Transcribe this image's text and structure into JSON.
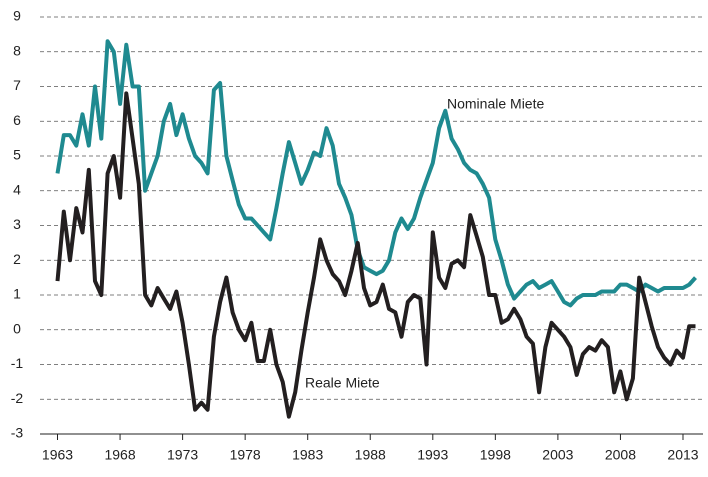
{
  "chart_data": {
    "type": "line",
    "x": [
      1963,
      1963.5,
      1964,
      1964.5,
      1965,
      1965.5,
      1966,
      1966.5,
      1967,
      1967.5,
      1968,
      1968.5,
      1969,
      1969.5,
      1970,
      1970.5,
      1971,
      1971.5,
      1972,
      1972.5,
      1973,
      1973.5,
      1974,
      1974.5,
      1975,
      1975.5,
      1976,
      1976.5,
      1977,
      1977.5,
      1978,
      1978.5,
      1979,
      1979.5,
      1980,
      1980.5,
      1981,
      1981.5,
      1982,
      1982.5,
      1983,
      1983.5,
      1984,
      1984.5,
      1985,
      1985.5,
      1986,
      1986.5,
      1987,
      1987.5,
      1988,
      1988.5,
      1989,
      1989.5,
      1990,
      1990.5,
      1991,
      1991.5,
      1992,
      1992.5,
      1993,
      1993.5,
      1994,
      1994.5,
      1995,
      1995.5,
      1996,
      1996.5,
      1997,
      1997.5,
      1998,
      1998.5,
      1999,
      1999.5,
      2000,
      2000.5,
      2001,
      2001.5,
      2002,
      2002.5,
      2003,
      2003.5,
      2004,
      2004.5,
      2005,
      2005.5,
      2006,
      2006.5,
      2007,
      2007.5,
      2008,
      2008.5,
      2009,
      2009.5,
      2010,
      2010.5,
      2011,
      2011.5,
      2012,
      2012.5,
      2013,
      2013.5,
      2014
    ],
    "series": [
      {
        "name": "Nominale Miete",
        "color": "#1f8a90",
        "values": [
          4.5,
          5.6,
          5.6,
          5.3,
          6.2,
          5.3,
          7.0,
          5.5,
          8.3,
          8.0,
          6.5,
          8.2,
          7.0,
          7.0,
          4.0,
          4.5,
          5.0,
          6.0,
          6.5,
          5.6,
          6.2,
          5.5,
          5.0,
          4.8,
          4.5,
          6.9,
          7.1,
          5.0,
          4.3,
          3.6,
          3.2,
          3.2,
          3.0,
          2.8,
          2.6,
          3.5,
          4.5,
          5.4,
          4.8,
          4.2,
          4.6,
          5.1,
          5.0,
          5.8,
          5.3,
          4.2,
          3.8,
          3.3,
          2.3,
          1.8,
          1.7,
          1.6,
          1.7,
          2.0,
          2.8,
          3.2,
          2.9,
          3.2,
          3.8,
          4.3,
          4.8,
          5.8,
          6.3,
          5.5,
          5.2,
          4.8,
          4.6,
          4.5,
          4.2,
          3.8,
          2.6,
          2.0,
          1.3,
          0.9,
          1.1,
          1.3,
          1.4,
          1.2,
          1.3,
          1.4,
          1.1,
          0.8,
          0.7,
          0.9,
          1.0,
          1.0,
          1.0,
          1.1,
          1.1,
          1.1,
          1.3,
          1.3,
          1.2,
          1.1,
          1.3,
          1.2,
          1.1,
          1.2,
          1.2,
          1.2,
          1.2,
          1.3,
          1.5
        ]
      },
      {
        "name": "Reale Miete",
        "color": "#231f20",
        "values": [
          1.4,
          3.4,
          2.0,
          3.5,
          2.8,
          4.6,
          1.4,
          1.0,
          4.5,
          5.0,
          3.8,
          6.8,
          5.5,
          4.2,
          1.0,
          0.7,
          1.2,
          0.9,
          0.6,
          1.1,
          0.2,
          -1.0,
          -2.3,
          -2.1,
          -2.3,
          -0.2,
          0.8,
          1.5,
          0.5,
          0.0,
          -0.3,
          0.2,
          -0.9,
          -0.9,
          0.0,
          -1.0,
          -1.5,
          -2.5,
          -1.8,
          -0.6,
          0.5,
          1.5,
          2.6,
          2.0,
          1.6,
          1.4,
          1.0,
          1.7,
          2.5,
          1.2,
          0.7,
          0.8,
          1.3,
          0.6,
          0.5,
          -0.2,
          0.8,
          1.0,
          0.9,
          -1.0,
          2.8,
          1.5,
          1.2,
          1.9,
          2.0,
          1.8,
          3.3,
          2.7,
          2.1,
          1.0,
          1.0,
          0.2,
          0.3,
          0.6,
          0.3,
          -0.2,
          -0.4,
          -1.8,
          -0.5,
          0.2,
          0.0,
          -0.2,
          -0.5,
          -1.3,
          -0.7,
          -0.5,
          -0.6,
          -0.3,
          -0.5,
          -1.8,
          -1.2,
          -2.0,
          -1.4,
          1.5,
          0.8,
          0.1,
          -0.5,
          -0.8,
          -1.0,
          -0.6,
          -0.8,
          0.1,
          0.1
        ]
      }
    ],
    "xlim": [
      1961.6,
      2014.6
    ],
    "xticks": [
      1963,
      1968,
      1973,
      1978,
      1983,
      1988,
      1993,
      1998,
      2003,
      2008,
      2013
    ],
    "ylim": [
      -3,
      9
    ],
    "yticks": [
      -3,
      -2,
      -1,
      0,
      1,
      2,
      3,
      4,
      5,
      6,
      7,
      8,
      9
    ],
    "grid": true
  }
}
